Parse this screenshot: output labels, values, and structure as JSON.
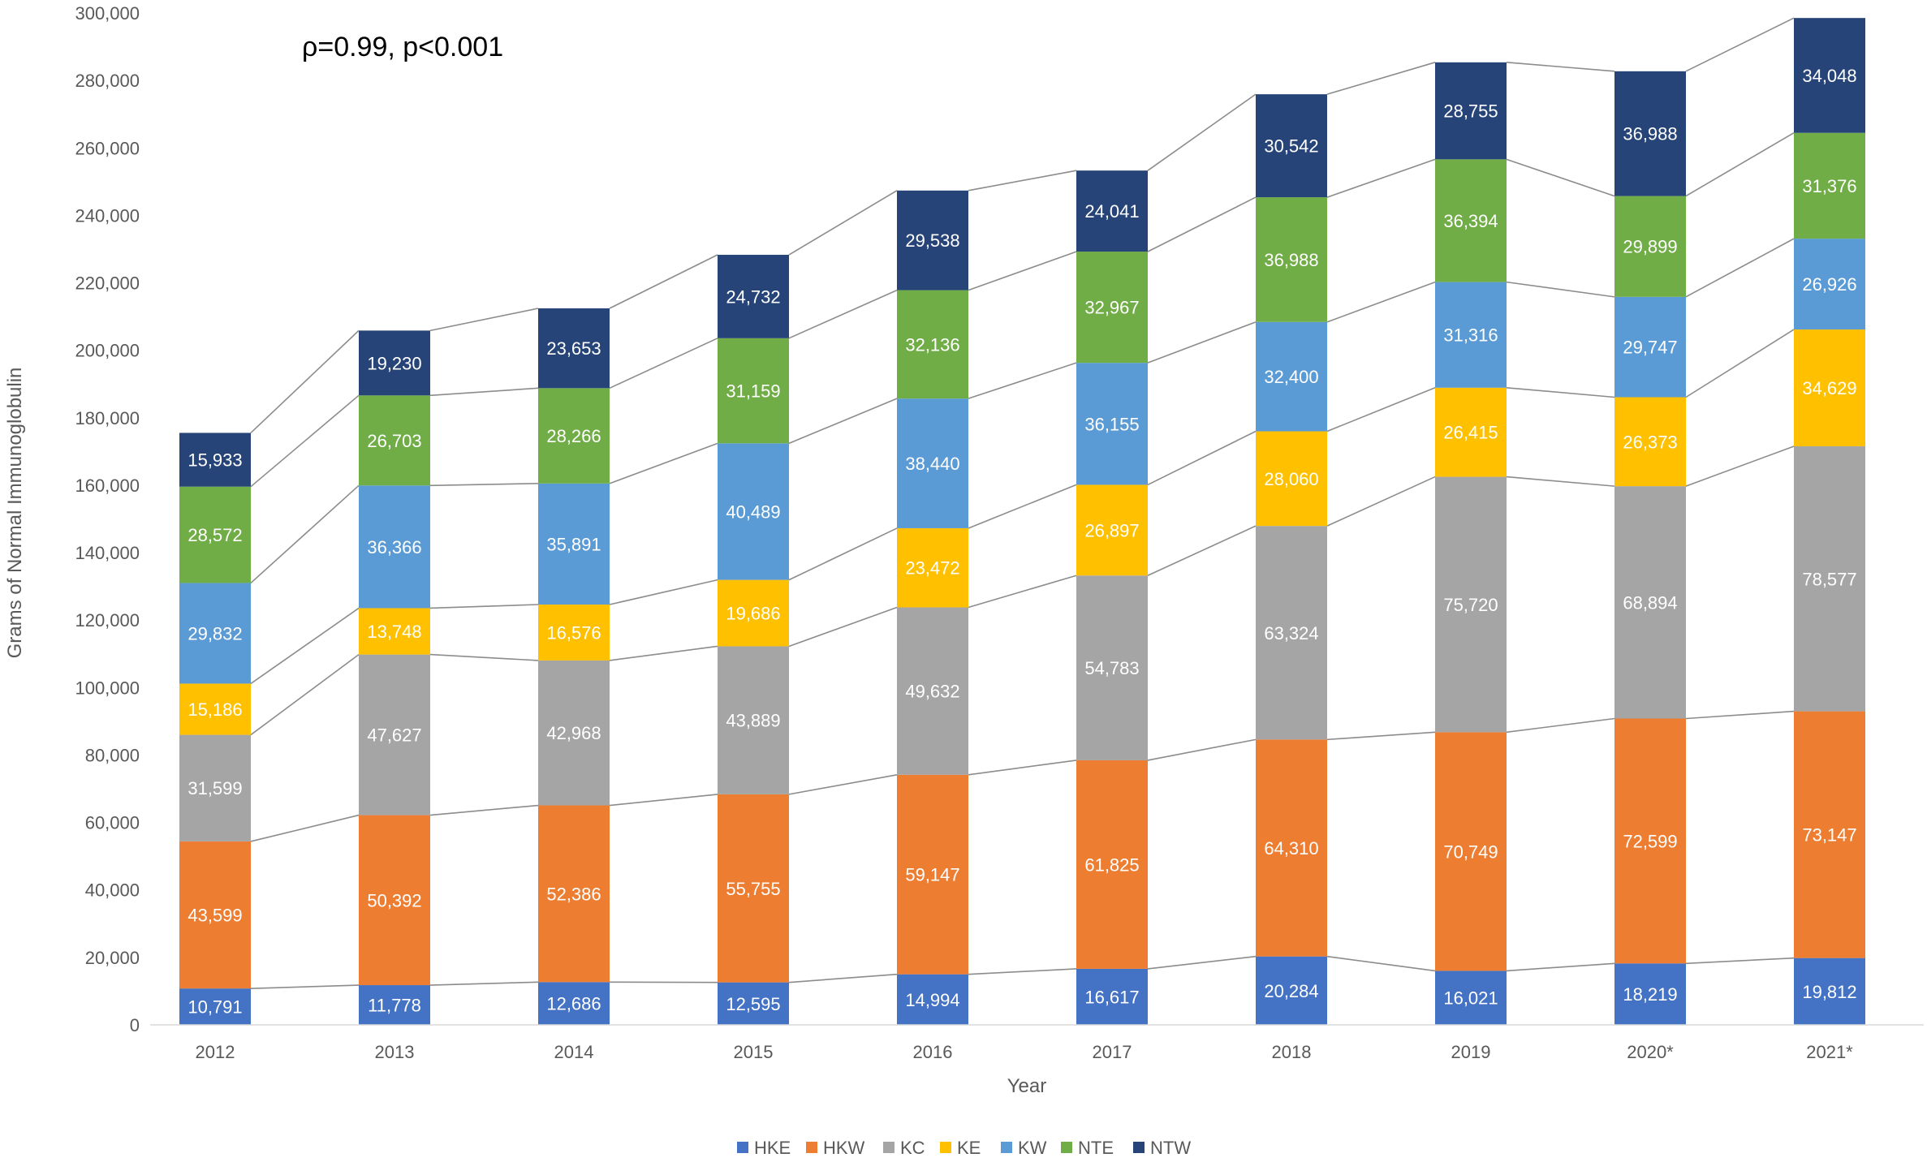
{
  "chart_data": {
    "type": "bar",
    "stacked": true,
    "annotation": "ρ=0.99, p<0.001",
    "xlabel": "Year",
    "ylabel": "Grams of Normal Immunoglobulin",
    "ylim": [
      0,
      300000
    ],
    "ytick_step": 20000,
    "ytick_labels": [
      "0",
      "20,000",
      "40,000",
      "60,000",
      "80,000",
      "100,000",
      "120,000",
      "140,000",
      "160,000",
      "180,000",
      "200,000",
      "220,000",
      "240,000",
      "260,000",
      "280,000",
      "300,000"
    ],
    "categories": [
      "2012",
      "2013",
      "2014",
      "2015",
      "2016",
      "2017",
      "2018",
      "2019",
      "2020*",
      "2021*"
    ],
    "grid": false,
    "series_lines": true,
    "legend_position": "bottom",
    "series": [
      {
        "name": "HKE",
        "color": "#4472C4",
        "values": [
          10791,
          11778,
          12686,
          12595,
          14994,
          16617,
          20284,
          16021,
          18219,
          19812
        ],
        "labels": [
          "10,791",
          "11,778",
          "12,686",
          "12,595",
          "14,994",
          "16,617",
          "20,284",
          "16,021",
          "18,219",
          "19,812"
        ]
      },
      {
        "name": "HKW",
        "color": "#ED7D31",
        "values": [
          43599,
          50392,
          52386,
          55755,
          59147,
          61825,
          64310,
          70749,
          72599,
          73147
        ],
        "labels": [
          "43,599",
          "50,392",
          "52,386",
          "55,755",
          "59,147",
          "61,825",
          "64,310",
          "70,749",
          "72,599",
          "73,147"
        ]
      },
      {
        "name": "KC",
        "color": "#A5A5A5",
        "values": [
          31599,
          47627,
          42968,
          43889,
          49632,
          54783,
          63324,
          75720,
          68894,
          78577
        ],
        "labels": [
          "31,599",
          "47,627",
          "42,968",
          "43,889",
          "49,632",
          "54,783",
          "63,324",
          "75,720",
          "68,894",
          "78,577"
        ]
      },
      {
        "name": "KE",
        "color": "#FFC000",
        "values": [
          15186,
          13748,
          16576,
          19686,
          23472,
          26897,
          28060,
          26415,
          26373,
          34629
        ],
        "labels": [
          "15,186",
          "13,748",
          "16,576",
          "19,686",
          "23,472",
          "26,897",
          "28,060",
          "26,415",
          "26,373",
          "34,629"
        ]
      },
      {
        "name": "KW",
        "color": "#5B9BD5",
        "values": [
          29832,
          36366,
          35891,
          40489,
          38440,
          36155,
          32400,
          31316,
          29747,
          26926
        ],
        "labels": [
          "29,832",
          "36,366",
          "35,891",
          "40,489",
          "38,440",
          "36,155",
          "32,400",
          "31,316",
          "29,747",
          "26,926"
        ]
      },
      {
        "name": "NTE",
        "color": "#70AD47",
        "values": [
          28572,
          26703,
          28266,
          31159,
          32136,
          32967,
          36988,
          36394,
          29899,
          31376
        ],
        "labels": [
          "28,572",
          "26,703",
          "28,266",
          "31,159",
          "32,136",
          "32,967",
          "36,988",
          "36,394",
          "29,899",
          "31,376"
        ]
      },
      {
        "name": "NTW",
        "color": "#264478",
        "values": [
          15933,
          19230,
          23653,
          24732,
          29538,
          24041,
          30542,
          28755,
          36988,
          34048
        ],
        "labels": [
          "15,933",
          "19,230",
          "23,653",
          "24,732",
          "29,538",
          "24,041",
          "30,542",
          "28,755",
          "36,988",
          "34,048"
        ]
      }
    ]
  }
}
